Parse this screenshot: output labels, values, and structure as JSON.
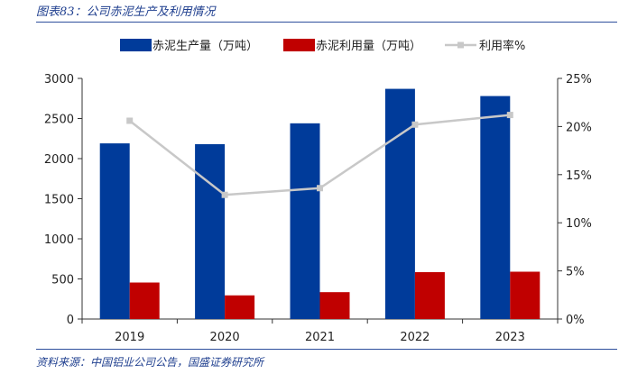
{
  "figure": {
    "title": "图表83：公司赤泥生产及利用情况",
    "source": "资料来源：中国铝业公司公告，国盛证券研究所"
  },
  "chart_data": {
    "type": "bar",
    "categories": [
      "2019",
      "2020",
      "2021",
      "2022",
      "2023"
    ],
    "series": [
      {
        "name": "赤泥生产量（万吨）",
        "kind": "bar",
        "axis": "left",
        "color": "#003b9a",
        "values": [
          2190,
          2180,
          2440,
          2870,
          2780
        ]
      },
      {
        "name": "赤泥利用量（万吨）",
        "kind": "bar",
        "axis": "left",
        "color": "#c00000",
        "values": [
          455,
          295,
          335,
          585,
          590
        ]
      },
      {
        "name": "利用率%",
        "kind": "line",
        "axis": "right",
        "color": "#c8c8c8",
        "values": [
          20.6,
          12.9,
          13.6,
          20.2,
          21.2
        ]
      }
    ],
    "y_left": {
      "min": 0,
      "max": 3000,
      "step": 500,
      "ticks": [
        "0",
        "500",
        "1000",
        "1500",
        "2000",
        "2500",
        "3000"
      ]
    },
    "y_right": {
      "min": 0,
      "max": 25,
      "step": 5,
      "ticks": [
        "0%",
        "5%",
        "10%",
        "15%",
        "20%",
        "25%"
      ]
    },
    "legend_position": "top-center",
    "grid": false
  }
}
